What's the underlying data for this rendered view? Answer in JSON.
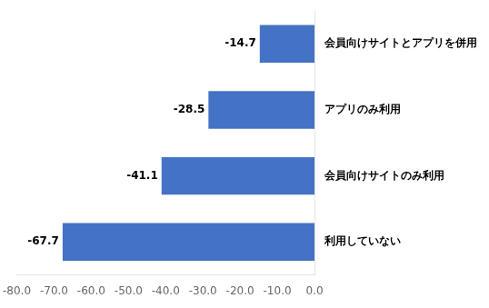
{
  "chart_data": {
    "type": "bar",
    "orientation": "horizontal",
    "categories": [
      "利用していない",
      "会員向けサイトのみ利用",
      "アプリのみ利用",
      "会員向けサイトとアプリを併用"
    ],
    "values": [
      -67.7,
      -41.1,
      -28.5,
      -14.7
    ],
    "value_labels": [
      "-67.7",
      "-41.1",
      "-28.5",
      "-14.7"
    ],
    "data_labels": true,
    "color": "#4472C4",
    "xlim": [
      -80.0,
      0.0
    ],
    "xticks": [
      {
        "value": -80.0,
        "label": "-80.0"
      },
      {
        "value": -70.0,
        "label": "-70.0"
      },
      {
        "value": -60.0,
        "label": "-60.0"
      },
      {
        "value": -50.0,
        "label": "-50.0"
      },
      {
        "value": -40.0,
        "label": "-40.0"
      },
      {
        "value": -30.0,
        "label": "-30.0"
      },
      {
        "value": -20.0,
        "label": "-20.0"
      },
      {
        "value": -10.0,
        "label": "-10.0"
      },
      {
        "value": 0.0,
        "label": "0.0"
      }
    ],
    "grid": false
  }
}
